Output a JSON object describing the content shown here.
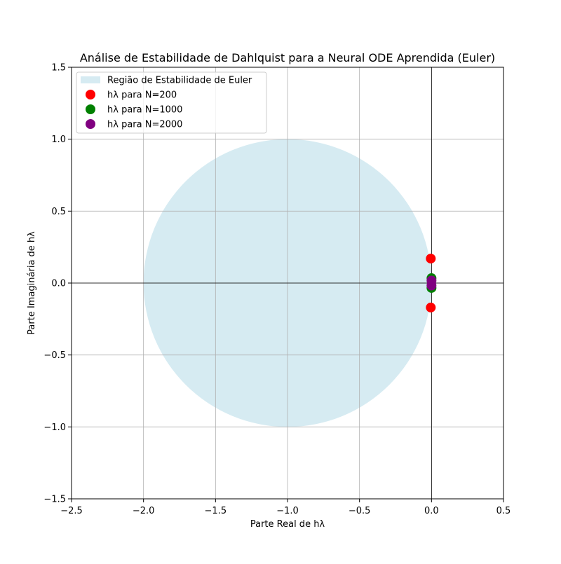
{
  "chart_data": {
    "type": "scatter",
    "title": "Análise de Estabilidade de Dahlquist para a Neural ODE Aprendida (Euler)",
    "xlabel": "Parte Real de hλ",
    "ylabel": "Parte Imaginária de hλ",
    "xlim": [
      -2.5,
      0.5
    ],
    "ylim": [
      -1.5,
      1.5
    ],
    "xticks": [
      -2.5,
      -2.0,
      -1.5,
      -1.0,
      -0.5,
      0.0,
      0.5
    ],
    "yticks": [
      -1.5,
      -1.0,
      -0.5,
      0.0,
      0.5,
      1.0,
      1.5
    ],
    "xtick_labels": [
      "−2.5",
      "−2.0",
      "−1.5",
      "−1.0",
      "−0.5",
      "0.0",
      "0.5"
    ],
    "ytick_labels": [
      "−1.5",
      "−1.0",
      "−0.5",
      "0.0",
      "0.5",
      "1.0",
      "1.5"
    ],
    "grid": true,
    "legend_position": "top-left",
    "region": {
      "name": "Região de Estabilidade de Euler",
      "shape": "circle",
      "center": [
        -1,
        0
      ],
      "radius": 1,
      "color": "#add8e6"
    },
    "series": [
      {
        "name": "hλ para N=200",
        "color": "#ff0000",
        "points": [
          [
            -0.005,
            0.17
          ],
          [
            -0.005,
            -0.17
          ]
        ]
      },
      {
        "name": "hλ para N=1000",
        "color": "#008000",
        "points": [
          [
            0.0,
            0.034
          ],
          [
            0.0,
            -0.034
          ]
        ]
      },
      {
        "name": "hλ para N=2000",
        "color": "#800080",
        "points": [
          [
            0.0,
            0.017
          ],
          [
            0.0,
            -0.017
          ]
        ]
      }
    ]
  }
}
